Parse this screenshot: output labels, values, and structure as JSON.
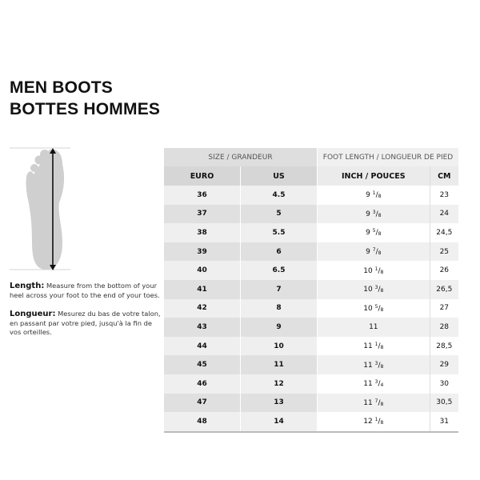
{
  "title": {
    "line1": "MEN BOOTS",
    "line2": "BOTTES HOMMES"
  },
  "instructions": {
    "length_label": "Length:",
    "length_text": "Measure from the bottom of your heel across your foot to the end of your toes.",
    "longueur_label": "Longueur:",
    "longueur_text": "Mesurez du bas de votre talon, en passant par votre pied, jusqu'à la fin de vos orteilles."
  },
  "table": {
    "group_headers": [
      "SIZE / GRANDEUR",
      "FOOT LENGTH / LONGUEUR DE PIED"
    ],
    "columns": [
      "EURO",
      "US",
      "INCH / POUCES",
      "CM"
    ],
    "rows": [
      {
        "euro": "36",
        "us": "4.5",
        "inch": {
          "whole": "9",
          "num": "1",
          "den": "8"
        },
        "cm": "23"
      },
      {
        "euro": "37",
        "us": "5",
        "inch": {
          "whole": "9",
          "num": "3",
          "den": "8"
        },
        "cm": "24"
      },
      {
        "euro": "38",
        "us": "5.5",
        "inch": {
          "whole": "9",
          "num": "5",
          "den": "8"
        },
        "cm": "24,5"
      },
      {
        "euro": "39",
        "us": "6",
        "inch": {
          "whole": "9",
          "num": "7",
          "den": "8"
        },
        "cm": "25"
      },
      {
        "euro": "40",
        "us": "6.5",
        "inch": {
          "whole": "10",
          "num": "1",
          "den": "8"
        },
        "cm": "26"
      },
      {
        "euro": "41",
        "us": "7",
        "inch": {
          "whole": "10",
          "num": "3",
          "den": "8"
        },
        "cm": "26,5"
      },
      {
        "euro": "42",
        "us": "8",
        "inch": {
          "whole": "10",
          "num": "5",
          "den": "8"
        },
        "cm": "27"
      },
      {
        "euro": "43",
        "us": "9",
        "inch": {
          "whole": "11",
          "num": null,
          "den": null
        },
        "cm": "28"
      },
      {
        "euro": "44",
        "us": "10",
        "inch": {
          "whole": "11",
          "num": "1",
          "den": "8"
        },
        "cm": "28,5"
      },
      {
        "euro": "45",
        "us": "11",
        "inch": {
          "whole": "11",
          "num": "3",
          "den": "8"
        },
        "cm": "29"
      },
      {
        "euro": "46",
        "us": "12",
        "inch": {
          "whole": "11",
          "num": "3",
          "den": "4"
        },
        "cm": "30"
      },
      {
        "euro": "47",
        "us": "13",
        "inch": {
          "whole": "11",
          "num": "7",
          "den": "8"
        },
        "cm": "30,5"
      },
      {
        "euro": "48",
        "us": "14",
        "inch": {
          "whole": "12",
          "num": "1",
          "den": "8"
        },
        "cm": "31"
      }
    ]
  },
  "colors": {
    "foot": "#cfcfcf",
    "arrow": "#111111"
  }
}
